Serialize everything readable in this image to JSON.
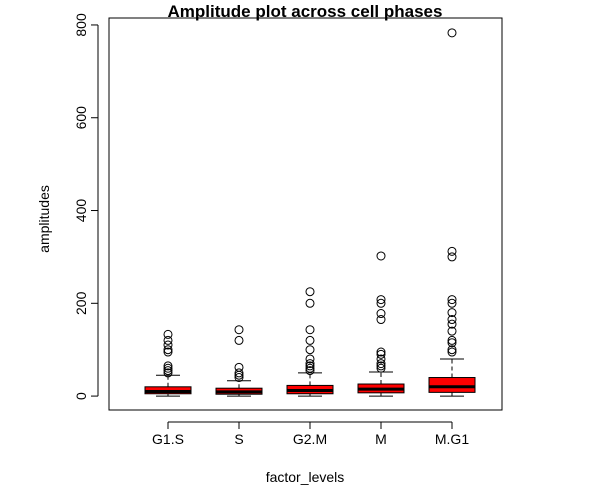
{
  "chart_data": {
    "type": "boxplot",
    "title": "Amplitude plot across cell phases",
    "xlabel": "factor_levels",
    "ylabel": "amplitudes",
    "ylim": [
      -30,
      815
    ],
    "yticks": [
      0,
      200,
      400,
      600,
      800
    ],
    "categories": [
      "G1.S",
      "S",
      "G2.M",
      "M",
      "M.G1"
    ],
    "box_color": "#ff0000",
    "boxes": [
      {
        "name": "G1.S",
        "min": 0,
        "q1": 5,
        "median": 10,
        "q3": 20,
        "max": 45,
        "outliers": [
          50,
          55,
          60,
          65,
          95,
          100,
          110,
          120,
          133
        ]
      },
      {
        "name": "S",
        "min": 0,
        "q1": 4,
        "median": 9,
        "q3": 17,
        "max": 33,
        "outliers": [
          40,
          45,
          50,
          62,
          120,
          143
        ]
      },
      {
        "name": "G2.M",
        "min": 0,
        "q1": 5,
        "median": 12,
        "q3": 23,
        "max": 50,
        "outliers": [
          55,
          60,
          65,
          70,
          80,
          100,
          120,
          143,
          200,
          225
        ]
      },
      {
        "name": "M",
        "min": 0,
        "q1": 7,
        "median": 15,
        "q3": 26,
        "max": 52,
        "outliers": [
          60,
          65,
          70,
          80,
          90,
          95,
          165,
          178,
          200,
          208,
          302
        ]
      },
      {
        "name": "M.G1",
        "min": 0,
        "q1": 8,
        "median": 20,
        "q3": 40,
        "max": 80,
        "outliers": [
          95,
          100,
          115,
          120,
          140,
          155,
          165,
          180,
          200,
          208,
          300,
          312,
          783
        ]
      }
    ]
  }
}
